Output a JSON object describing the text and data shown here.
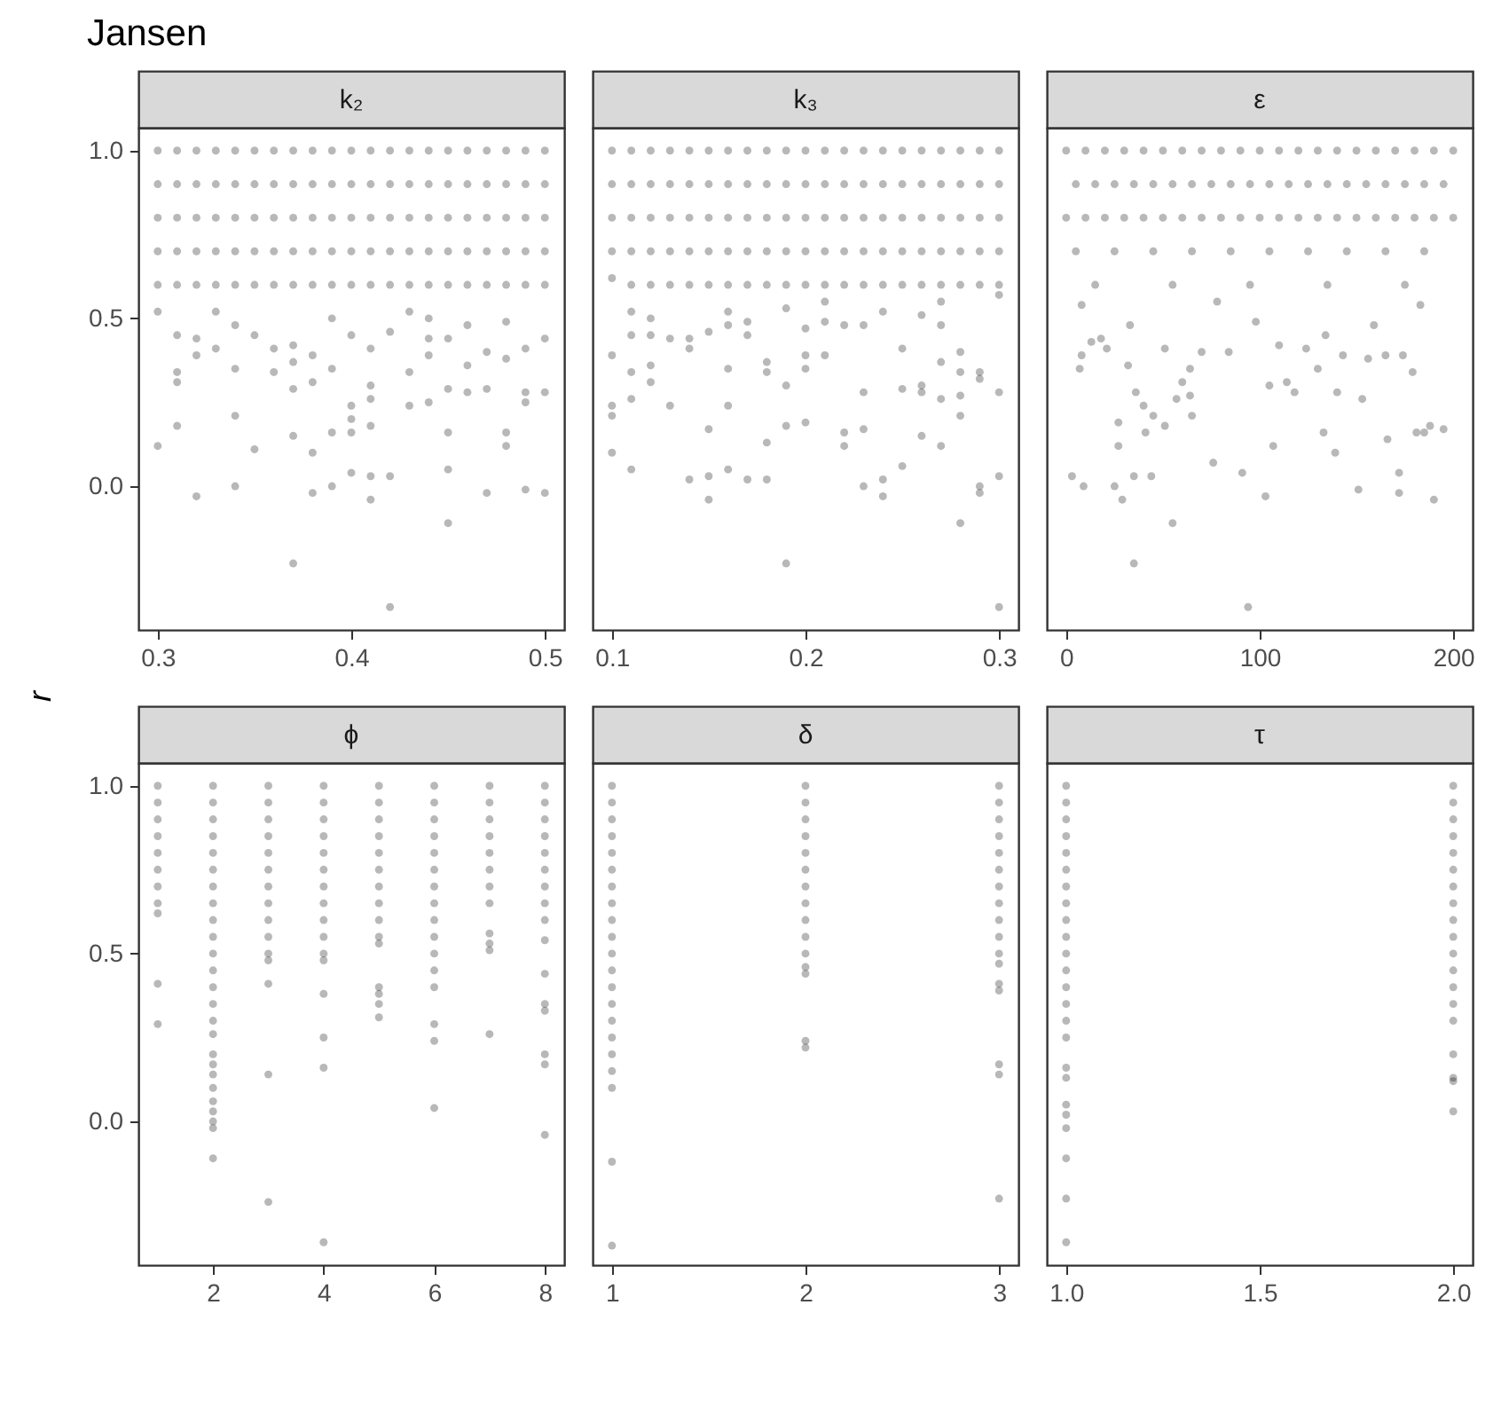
{
  "chart_data": [
    {
      "type": "scatter",
      "title": "k₂",
      "annotations": [
        "Jansen"
      ],
      "ylabel": "r",
      "marker": "circle",
      "xlim": [
        0.29,
        0.51
      ],
      "ylim": [
        -0.428,
        1.068
      ],
      "xticks": [
        0.3,
        0.4,
        0.5
      ],
      "yticks": [
        {
          "value": 0,
          "label": "0.0"
        },
        {
          "value": 0.5,
          "label": "0.5"
        },
        {
          "value": 1,
          "label": "1.0"
        }
      ],
      "series": [
        {
          "color": "#000000",
          "x": [
            0.3,
            0.3,
            0.3,
            0.3,
            0.3,
            0.3,
            0.3
          ],
          "values": [
            1,
            0.9,
            0.8,
            0.7,
            0.6,
            0.52,
            0.12
          ]
        },
        {
          "color": "#000000",
          "x": [
            0.31,
            0.31,
            0.31,
            0.31,
            0.31,
            0.31,
            0.31,
            0.31,
            0.31
          ],
          "values": [
            1,
            0.9,
            0.8,
            0.7,
            0.6,
            0.45,
            0.34,
            0.31,
            0.18
          ]
        },
        {
          "color": "#000000",
          "x": [
            0.32,
            0.32,
            0.32,
            0.32,
            0.32,
            0.32,
            0.32,
            0.32
          ],
          "values": [
            1,
            0.9,
            0.8,
            0.7,
            0.6,
            0.44,
            0.39,
            -0.03
          ]
        },
        {
          "color": "#000000",
          "x": [
            0.33,
            0.33,
            0.33,
            0.33,
            0.33,
            0.33,
            0.33
          ],
          "values": [
            1,
            0.9,
            0.8,
            0.7,
            0.6,
            0.52,
            0.41
          ]
        },
        {
          "color": "#000000",
          "x": [
            0.34,
            0.34,
            0.34,
            0.34,
            0.34,
            0.34,
            0.34,
            0.34,
            0.34
          ],
          "values": [
            1,
            0.9,
            0.8,
            0.7,
            0.6,
            0.48,
            0.35,
            0.21,
            0
          ]
        },
        {
          "color": "#000000",
          "x": [
            0.35,
            0.35,
            0.35,
            0.35,
            0.35,
            0.35,
            0.35
          ],
          "values": [
            1,
            0.9,
            0.8,
            0.7,
            0.6,
            0.45,
            0.11
          ]
        },
        {
          "color": "#000000",
          "x": [
            0.36,
            0.36,
            0.36,
            0.36,
            0.36,
            0.36,
            0.36
          ],
          "values": [
            1,
            0.9,
            0.8,
            0.7,
            0.6,
            0.41,
            0.34
          ]
        },
        {
          "color": "#000000",
          "x": [
            0.37,
            0.37,
            0.37,
            0.37,
            0.37,
            0.37,
            0.37,
            0.37,
            0.37,
            0.37
          ],
          "values": [
            1,
            0.9,
            0.8,
            0.7,
            0.6,
            0.42,
            0.37,
            0.29,
            0.15,
            -0.23
          ]
        },
        {
          "color": "#000000",
          "x": [
            0.38,
            0.38,
            0.38,
            0.38,
            0.38,
            0.38,
            0.38,
            0.38,
            0.38
          ],
          "values": [
            1,
            0.9,
            0.8,
            0.7,
            0.6,
            0.39,
            0.31,
            0.1,
            -0.02
          ]
        },
        {
          "color": "#000000",
          "x": [
            0.39,
            0.39,
            0.39,
            0.39,
            0.39,
            0.39,
            0.39,
            0.39,
            0.39
          ],
          "values": [
            1,
            0.9,
            0.8,
            0.7,
            0.6,
            0.5,
            0.35,
            0.16,
            0
          ]
        },
        {
          "color": "#000000",
          "x": [
            0.4,
            0.4,
            0.4,
            0.4,
            0.4,
            0.4,
            0.4,
            0.4,
            0.4,
            0.4
          ],
          "values": [
            1,
            0.9,
            0.8,
            0.7,
            0.6,
            0.45,
            0.24,
            0.2,
            0.16,
            0.04
          ]
        },
        {
          "color": "#000000",
          "x": [
            0.41,
            0.41,
            0.41,
            0.41,
            0.41,
            0.41,
            0.41,
            0.41,
            0.41,
            0.41,
            0.41
          ],
          "values": [
            1,
            0.9,
            0.8,
            0.7,
            0.6,
            0.41,
            0.3,
            0.26,
            0.18,
            0.03,
            -0.04
          ]
        },
        {
          "color": "#000000",
          "x": [
            0.42,
            0.42,
            0.42,
            0.42,
            0.42,
            0.42,
            0.42,
            0.42
          ],
          "values": [
            1,
            0.9,
            0.8,
            0.7,
            0.6,
            0.46,
            0.03,
            -0.36
          ]
        },
        {
          "color": "#000000",
          "x": [
            0.43,
            0.43,
            0.43,
            0.43,
            0.43,
            0.43,
            0.43,
            0.43
          ],
          "values": [
            1,
            0.9,
            0.8,
            0.7,
            0.6,
            0.52,
            0.34,
            0.24
          ]
        },
        {
          "color": "#000000",
          "x": [
            0.44,
            0.44,
            0.44,
            0.44,
            0.44,
            0.44,
            0.44,
            0.44,
            0.44
          ],
          "values": [
            1,
            0.9,
            0.8,
            0.7,
            0.6,
            0.5,
            0.44,
            0.39,
            0.25
          ]
        },
        {
          "color": "#000000",
          "x": [
            0.45,
            0.45,
            0.45,
            0.45,
            0.45,
            0.45,
            0.45,
            0.45,
            0.45,
            0.45
          ],
          "values": [
            1,
            0.9,
            0.8,
            0.7,
            0.6,
            0.44,
            0.29,
            0.16,
            0.05,
            -0.11
          ]
        },
        {
          "color": "#000000",
          "x": [
            0.46,
            0.46,
            0.46,
            0.46,
            0.46,
            0.46,
            0.46,
            0.46
          ],
          "values": [
            1,
            0.9,
            0.8,
            0.7,
            0.6,
            0.48,
            0.36,
            0.28
          ]
        },
        {
          "color": "#000000",
          "x": [
            0.47,
            0.47,
            0.47,
            0.47,
            0.47,
            0.47,
            0.47,
            0.47
          ],
          "values": [
            1,
            0.9,
            0.8,
            0.7,
            0.6,
            0.4,
            0.29,
            -0.02
          ]
        },
        {
          "color": "#000000",
          "x": [
            0.48,
            0.48,
            0.48,
            0.48,
            0.48,
            0.48,
            0.48,
            0.48,
            0.48
          ],
          "values": [
            1,
            0.9,
            0.8,
            0.7,
            0.6,
            0.49,
            0.38,
            0.16,
            0.12
          ]
        },
        {
          "color": "#000000",
          "x": [
            0.49,
            0.49,
            0.49,
            0.49,
            0.49,
            0.49,
            0.49,
            0.49,
            0.49
          ],
          "values": [
            1,
            0.9,
            0.8,
            0.7,
            0.6,
            0.41,
            0.28,
            0.25,
            -0.01
          ]
        },
        {
          "color": "#000000",
          "x": [
            0.5,
            0.5,
            0.5,
            0.5,
            0.5,
            0.5,
            0.5,
            0.5
          ],
          "values": [
            1,
            0.9,
            0.8,
            0.7,
            0.6,
            0.44,
            0.28,
            -0.02
          ]
        }
      ]
    },
    {
      "type": "scatter",
      "title": "k₃",
      "marker": "circle",
      "tick_labels": "x",
      "xlim": [
        0.09,
        0.31
      ],
      "ylim": [
        -0.428,
        1.068
      ],
      "xticks": [
        0.1,
        0.2,
        0.3
      ],
      "series": [
        {
          "color": "#000000",
          "x": [
            0.1,
            0.1,
            0.1,
            0.1,
            0.1,
            0.1,
            0.1,
            0.1,
            0.1
          ],
          "values": [
            1,
            0.9,
            0.8,
            0.7,
            0.62,
            0.39,
            0.24,
            0.21,
            0.1
          ]
        },
        {
          "color": "#000000",
          "x": [
            0.11,
            0.11,
            0.11,
            0.11,
            0.11,
            0.11,
            0.11,
            0.11,
            0.11,
            0.11
          ],
          "values": [
            1,
            0.9,
            0.8,
            0.7,
            0.6,
            0.52,
            0.45,
            0.34,
            0.26,
            0.05
          ]
        },
        {
          "color": "#000000",
          "x": [
            0.12,
            0.12,
            0.12,
            0.12,
            0.12,
            0.12,
            0.12,
            0.12,
            0.12
          ],
          "values": [
            1,
            0.9,
            0.8,
            0.7,
            0.6,
            0.5,
            0.45,
            0.36,
            0.31
          ]
        },
        {
          "color": "#000000",
          "x": [
            0.13,
            0.13,
            0.13,
            0.13,
            0.13,
            0.13,
            0.13
          ],
          "values": [
            1,
            0.9,
            0.8,
            0.7,
            0.6,
            0.44,
            0.24
          ]
        },
        {
          "color": "#000000",
          "x": [
            0.14,
            0.14,
            0.14,
            0.14,
            0.14,
            0.14,
            0.14,
            0.14
          ],
          "values": [
            1,
            0.9,
            0.8,
            0.7,
            0.6,
            0.44,
            0.41,
            0.02
          ]
        },
        {
          "color": "#000000",
          "x": [
            0.15,
            0.15,
            0.15,
            0.15,
            0.15,
            0.15,
            0.15,
            0.15,
            0.15
          ],
          "values": [
            1,
            0.9,
            0.8,
            0.7,
            0.6,
            0.46,
            0.17,
            0.03,
            -0.04
          ]
        },
        {
          "color": "#000000",
          "x": [
            0.16,
            0.16,
            0.16,
            0.16,
            0.16,
            0.16,
            0.16,
            0.16,
            0.16,
            0.16
          ],
          "values": [
            1,
            0.9,
            0.8,
            0.7,
            0.6,
            0.52,
            0.48,
            0.35,
            0.24,
            0.05
          ]
        },
        {
          "color": "#000000",
          "x": [
            0.17,
            0.17,
            0.17,
            0.17,
            0.17,
            0.17,
            0.17,
            0.17
          ],
          "values": [
            1,
            0.9,
            0.8,
            0.7,
            0.6,
            0.49,
            0.45,
            0.02
          ]
        },
        {
          "color": "#000000",
          "x": [
            0.18,
            0.18,
            0.18,
            0.18,
            0.18,
            0.18,
            0.18,
            0.18,
            0.18
          ],
          "values": [
            1,
            0.9,
            0.8,
            0.7,
            0.6,
            0.37,
            0.34,
            0.13,
            0.02
          ]
        },
        {
          "color": "#000000",
          "x": [
            0.19,
            0.19,
            0.19,
            0.19,
            0.19,
            0.19,
            0.19,
            0.19,
            0.19
          ],
          "values": [
            1,
            0.9,
            0.8,
            0.7,
            0.6,
            0.53,
            0.3,
            0.18,
            -0.23
          ]
        },
        {
          "color": "#000000",
          "x": [
            0.2,
            0.2,
            0.2,
            0.2,
            0.2,
            0.2,
            0.2,
            0.2,
            0.2
          ],
          "values": [
            1,
            0.9,
            0.8,
            0.7,
            0.6,
            0.47,
            0.39,
            0.35,
            0.19
          ]
        },
        {
          "color": "#000000",
          "x": [
            0.21,
            0.21,
            0.21,
            0.21,
            0.21,
            0.21,
            0.21,
            0.21
          ],
          "values": [
            1,
            0.9,
            0.8,
            0.7,
            0.6,
            0.55,
            0.49,
            0.39
          ]
        },
        {
          "color": "#000000",
          "x": [
            0.22,
            0.22,
            0.22,
            0.22,
            0.22,
            0.22,
            0.22,
            0.22
          ],
          "values": [
            1,
            0.9,
            0.8,
            0.7,
            0.6,
            0.48,
            0.16,
            0.12
          ]
        },
        {
          "color": "#000000",
          "x": [
            0.23,
            0.23,
            0.23,
            0.23,
            0.23,
            0.23,
            0.23,
            0.23,
            0.23
          ],
          "values": [
            1,
            0.9,
            0.8,
            0.7,
            0.6,
            0.48,
            0.28,
            0.17,
            0
          ]
        },
        {
          "color": "#000000",
          "x": [
            0.24,
            0.24,
            0.24,
            0.24,
            0.24,
            0.24,
            0.24,
            0.24
          ],
          "values": [
            1,
            0.9,
            0.8,
            0.7,
            0.6,
            0.52,
            0.02,
            -0.03
          ]
        },
        {
          "color": "#000000",
          "x": [
            0.25,
            0.25,
            0.25,
            0.25,
            0.25,
            0.25,
            0.25,
            0.25
          ],
          "values": [
            1,
            0.9,
            0.8,
            0.7,
            0.6,
            0.41,
            0.29,
            0.06
          ]
        },
        {
          "color": "#000000",
          "x": [
            0.26,
            0.26,
            0.26,
            0.26,
            0.26,
            0.26,
            0.26,
            0.26,
            0.26
          ],
          "values": [
            1,
            0.9,
            0.8,
            0.7,
            0.6,
            0.51,
            0.3,
            0.28,
            0.15
          ]
        },
        {
          "color": "#000000",
          "x": [
            0.27,
            0.27,
            0.27,
            0.27,
            0.27,
            0.27,
            0.27,
            0.27,
            0.27,
            0.27
          ],
          "values": [
            1,
            0.9,
            0.8,
            0.7,
            0.6,
            0.55,
            0.48,
            0.37,
            0.26,
            0.12
          ]
        },
        {
          "color": "#000000",
          "x": [
            0.28,
            0.28,
            0.28,
            0.28,
            0.28,
            0.28,
            0.28,
            0.28,
            0.28,
            0.28
          ],
          "values": [
            1,
            0.9,
            0.8,
            0.7,
            0.6,
            0.4,
            0.34,
            0.27,
            0.21,
            -0.11
          ]
        },
        {
          "color": "#000000",
          "x": [
            0.29,
            0.29,
            0.29,
            0.29,
            0.29,
            0.29,
            0.29,
            0.29,
            0.29
          ],
          "values": [
            1,
            0.9,
            0.8,
            0.7,
            0.6,
            0.34,
            0.32,
            0,
            -0.02
          ]
        },
        {
          "color": "#000000",
          "x": [
            0.3,
            0.3,
            0.3,
            0.3,
            0.3,
            0.3,
            0.3,
            0.3,
            0.3
          ],
          "values": [
            1,
            0.9,
            0.8,
            0.7,
            0.6,
            0.57,
            0.28,
            0.03,
            -0.36
          ]
        }
      ]
    },
    {
      "type": "scatter",
      "title": "ε",
      "marker": "circle",
      "tick_labels": "x",
      "xlim": [
        -10,
        210
      ],
      "ylim": [
        -0.428,
        1.068
      ],
      "xticks": [
        0,
        100,
        200
      ],
      "series": [
        {
          "color": "#000000",
          "x": [
            0,
            10,
            20,
            30,
            40,
            50,
            60,
            70,
            80,
            90,
            100,
            110,
            120,
            130,
            140,
            150,
            160,
            170,
            180,
            190,
            200,
            5,
            15,
            25,
            35,
            45,
            55,
            65,
            75,
            85,
            95,
            105,
            115,
            125,
            135,
            145,
            155,
            165,
            175,
            185,
            195,
            0,
            10,
            20,
            30,
            40,
            50,
            60,
            70,
            80,
            90,
            100,
            110,
            120,
            130,
            140,
            150,
            160,
            170,
            180,
            190,
            200,
            5,
            25,
            45,
            65,
            85,
            105,
            125,
            145,
            165,
            185,
            15,
            55,
            95,
            135,
            175
          ],
          "values": [
            1,
            1,
            1,
            1,
            1,
            1,
            1,
            1,
            1,
            1,
            1,
            1,
            1,
            1,
            1,
            1,
            1,
            1,
            1,
            1,
            1,
            0.9,
            0.9,
            0.9,
            0.9,
            0.9,
            0.9,
            0.9,
            0.9,
            0.9,
            0.9,
            0.9,
            0.9,
            0.9,
            0.9,
            0.9,
            0.9,
            0.9,
            0.9,
            0.9,
            0.9,
            0.8,
            0.8,
            0.8,
            0.8,
            0.8,
            0.8,
            0.8,
            0.8,
            0.8,
            0.8,
            0.8,
            0.8,
            0.8,
            0.8,
            0.8,
            0.8,
            0.8,
            0.8,
            0.8,
            0.8,
            0.8,
            0.7,
            0.7,
            0.7,
            0.7,
            0.7,
            0.7,
            0.7,
            0.7,
            0.7,
            0.7,
            0.6,
            0.6,
            0.6,
            0.6,
            0.6
          ]
        },
        {
          "color": "#000000",
          "x": [
            3,
            9,
            7,
            8,
            13,
            18,
            21,
            32,
            27,
            27,
            25,
            29,
            35,
            35,
            44,
            36,
            40,
            41,
            45,
            51,
            55,
            51,
            57,
            60,
            64,
            65,
            64,
            70,
            76,
            84,
            91,
            94,
            98,
            103,
            107,
            105,
            110,
            114,
            118,
            124,
            130,
            133,
            134,
            139,
            140,
            143,
            151,
            153,
            156,
            159,
            166,
            165,
            172,
            172,
            174,
            179,
            181,
            185,
            190,
            195,
            188,
            183,
            8,
            33,
            78
          ],
          "values": [
            0.03,
            0,
            0.35,
            0.39,
            0.43,
            0.44,
            0.41,
            0.36,
            0.19,
            0.12,
            0,
            -0.04,
            -0.23,
            0.03,
            0.03,
            0.28,
            0.24,
            0.16,
            0.21,
            0.18,
            -0.11,
            0.41,
            0.26,
            0.31,
            0.27,
            0.21,
            0.35,
            0.4,
            0.07,
            0.4,
            0.04,
            -0.36,
            0.49,
            -0.03,
            0.12,
            0.3,
            0.42,
            0.31,
            0.28,
            0.41,
            0.35,
            0.16,
            0.45,
            0.1,
            0.28,
            0.39,
            -0.01,
            0.26,
            0.38,
            0.48,
            0.14,
            0.39,
            0.04,
            -0.02,
            0.39,
            0.34,
            0.16,
            0.16,
            -0.04,
            0.17,
            0.18,
            0.54,
            0.54,
            0.48,
            0.55
          ]
        }
      ]
    },
    {
      "type": "scatter",
      "title": "ϕ",
      "marker": "circle",
      "xlim": [
        0.65,
        8.35
      ],
      "ylim": [
        -0.428,
        1.068
      ],
      "xticks": [
        2,
        4,
        6,
        8
      ],
      "yticks": [
        {
          "value": 0,
          "label": "0.0"
        },
        {
          "value": 0.5,
          "label": "0.5"
        },
        {
          "value": 1,
          "label": "1.0"
        }
      ],
      "series": [
        {
          "color": "#000000",
          "x": [
            1,
            1,
            1,
            1,
            1,
            1,
            1,
            1,
            1,
            1,
            1
          ],
          "values": [
            1,
            0.95,
            0.9,
            0.85,
            0.8,
            0.75,
            0.7,
            0.65,
            0.62,
            0.41,
            0.29
          ]
        },
        {
          "color": "#000000",
          "x": [
            2,
            2,
            2,
            2,
            2,
            2,
            2,
            2,
            2,
            2,
            2,
            2,
            2,
            2,
            2,
            2,
            2,
            2,
            2,
            2,
            2,
            2,
            2,
            2,
            2
          ],
          "values": [
            1,
            0.95,
            0.9,
            0.85,
            0.8,
            0.75,
            0.7,
            0.65,
            0.6,
            0.55,
            0.5,
            0.45,
            0.4,
            0.35,
            0.3,
            0.26,
            0.2,
            0.17,
            0.14,
            0.1,
            0.06,
            0.03,
            0,
            -0.02,
            -0.11
          ]
        },
        {
          "color": "#000000",
          "x": [
            3,
            3,
            3,
            3,
            3,
            3,
            3,
            3,
            3,
            3,
            3,
            3,
            3,
            3,
            3
          ],
          "values": [
            1,
            0.95,
            0.9,
            0.85,
            0.8,
            0.75,
            0.7,
            0.65,
            0.6,
            0.55,
            0.5,
            0.48,
            0.41,
            0.14,
            -0.24
          ]
        },
        {
          "color": "#000000",
          "x": [
            4,
            4,
            4,
            4,
            4,
            4,
            4,
            4,
            4,
            4,
            4,
            4,
            4,
            4,
            4,
            4
          ],
          "values": [
            1,
            0.95,
            0.9,
            0.85,
            0.8,
            0.75,
            0.7,
            0.65,
            0.6,
            0.55,
            0.5,
            0.48,
            0.38,
            0.25,
            0.16,
            -0.36
          ]
        },
        {
          "color": "#000000",
          "x": [
            5,
            5,
            5,
            5,
            5,
            5,
            5,
            5,
            5,
            5,
            5,
            5,
            5,
            5,
            5
          ],
          "values": [
            1,
            0.95,
            0.9,
            0.85,
            0.8,
            0.75,
            0.7,
            0.65,
            0.6,
            0.55,
            0.53,
            0.4,
            0.38,
            0.35,
            0.31
          ]
        },
        {
          "color": "#000000",
          "x": [
            6,
            6,
            6,
            6,
            6,
            6,
            6,
            6,
            6,
            6,
            6,
            6,
            6,
            6,
            6,
            6
          ],
          "values": [
            1,
            0.95,
            0.9,
            0.85,
            0.8,
            0.75,
            0.7,
            0.65,
            0.6,
            0.55,
            0.5,
            0.45,
            0.4,
            0.29,
            0.24,
            0.04
          ]
        },
        {
          "color": "#000000",
          "x": [
            7,
            7,
            7,
            7,
            7,
            7,
            7,
            7,
            7,
            7,
            7,
            7
          ],
          "values": [
            1,
            0.95,
            0.9,
            0.85,
            0.8,
            0.75,
            0.7,
            0.65,
            0.56,
            0.53,
            0.51,
            0.26
          ]
        },
        {
          "color": "#000000",
          "x": [
            8,
            8,
            8,
            8,
            8,
            8,
            8,
            8,
            8,
            8,
            8,
            8,
            8,
            8,
            8,
            8
          ],
          "values": [
            1,
            0.95,
            0.9,
            0.85,
            0.8,
            0.75,
            0.7,
            0.65,
            0.6,
            0.54,
            0.44,
            0.35,
            0.33,
            0.2,
            0.17,
            -0.04
          ]
        }
      ]
    },
    {
      "type": "scatter",
      "title": "δ",
      "marker": "circle",
      "tick_labels": "x",
      "xlim": [
        0.9,
        3.1
      ],
      "ylim": [
        -0.428,
        1.068
      ],
      "xticks": [
        1,
        2,
        3
      ],
      "series": [
        {
          "color": "#000000",
          "x": [
            1,
            1,
            1,
            1,
            1,
            1,
            1,
            1,
            1,
            1,
            1,
            1,
            1,
            1,
            1,
            1,
            1,
            1,
            1,
            1,
            1
          ],
          "values": [
            1,
            0.95,
            0.9,
            0.85,
            0.8,
            0.75,
            0.7,
            0.65,
            0.6,
            0.55,
            0.5,
            0.45,
            0.4,
            0.35,
            0.3,
            0.25,
            0.2,
            0.15,
            0.1,
            -0.12,
            -0.37
          ]
        },
        {
          "color": "#000000",
          "x": [
            2,
            2,
            2,
            2,
            2,
            2,
            2,
            2,
            2,
            2,
            2,
            2,
            2,
            2,
            2
          ],
          "values": [
            1,
            0.95,
            0.9,
            0.85,
            0.8,
            0.75,
            0.7,
            0.65,
            0.6,
            0.55,
            0.5,
            0.46,
            0.44,
            0.24,
            0.22
          ]
        },
        {
          "color": "#000000",
          "x": [
            3,
            3,
            3,
            3,
            3,
            3,
            3,
            3,
            3,
            3,
            3,
            3,
            3,
            3,
            3,
            3,
            3
          ],
          "values": [
            1,
            0.95,
            0.9,
            0.85,
            0.8,
            0.75,
            0.7,
            0.65,
            0.6,
            0.55,
            0.5,
            0.47,
            0.41,
            0.39,
            0.17,
            0.14,
            -0.23
          ]
        }
      ]
    },
    {
      "type": "scatter",
      "title": "τ",
      "marker": "circle",
      "tick_labels": "x",
      "xlim": [
        0.95,
        2.05
      ],
      "ylim": [
        -0.428,
        1.068
      ],
      "xticks": [
        {
          "value": 1,
          "label": "1.0"
        },
        {
          "value": 1.5,
          "label": "1.5"
        },
        {
          "value": 2,
          "label": "2.0"
        }
      ],
      "series": [
        {
          "color": "#000000",
          "x": [
            1,
            1,
            1,
            1,
            1,
            1,
            1,
            1,
            1,
            1,
            1,
            1,
            1,
            1,
            1,
            1,
            1,
            1,
            1,
            1,
            1,
            1,
            1,
            1
          ],
          "values": [
            1,
            0.95,
            0.9,
            0.85,
            0.8,
            0.75,
            0.7,
            0.65,
            0.6,
            0.55,
            0.5,
            0.45,
            0.4,
            0.35,
            0.3,
            0.25,
            0.16,
            0.13,
            0.05,
            0.02,
            -0.02,
            -0.11,
            -0.23,
            -0.36
          ]
        },
        {
          "color": "#000000",
          "x": [
            2,
            2,
            2,
            2,
            2,
            2,
            2,
            2,
            2,
            2,
            2,
            2,
            2,
            2,
            2,
            2,
            2,
            2,
            2
          ],
          "values": [
            1,
            0.95,
            0.9,
            0.85,
            0.8,
            0.75,
            0.7,
            0.65,
            0.6,
            0.55,
            0.5,
            0.45,
            0.4,
            0.35,
            0.3,
            0.2,
            0.13,
            0.12,
            0.03
          ]
        }
      ]
    }
  ]
}
